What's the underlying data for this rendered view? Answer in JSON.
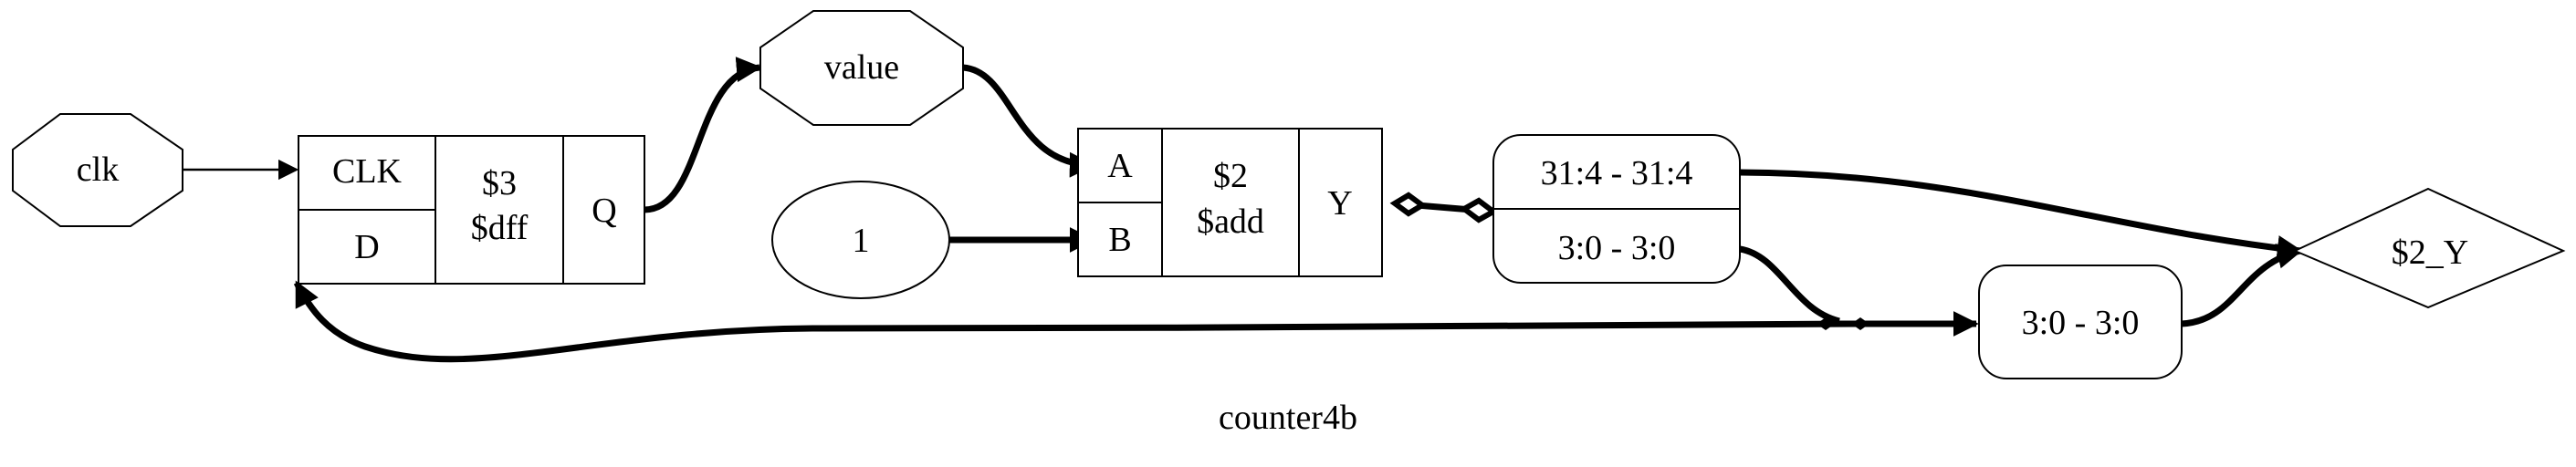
{
  "title": "counter4b",
  "ports": {
    "clk": "clk",
    "value": "value",
    "out": "$2_Y"
  },
  "const": "1",
  "dff": {
    "clk_port": "CLK",
    "d_port": "D",
    "id": "$3",
    "type": "$dff",
    "q_port": "Q"
  },
  "add": {
    "a_port": "A",
    "b_port": "B",
    "id": "$2",
    "type": "$add",
    "y_port": "Y"
  },
  "split": {
    "upper": "31:4 - 31:4",
    "lower": "3:0 - 3:0"
  },
  "slice": "3:0 - 3:0"
}
